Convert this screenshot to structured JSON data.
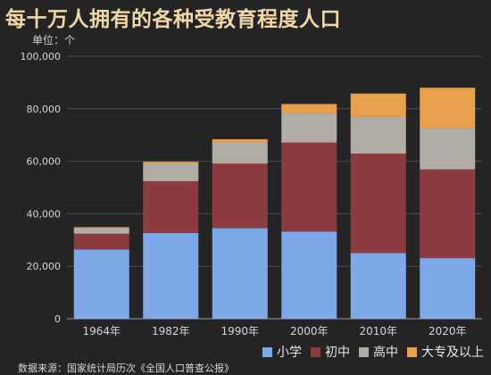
{
  "chart_data": {
    "type": "bar",
    "stacked": true,
    "title": "每十万人拥有的各种受教育程度人口",
    "unit_label": "单位：个",
    "source": "数据来源：国家统计局历次《全国人口普查公报》",
    "categories": [
      "1964年",
      "1982年",
      "1990年",
      "2000年",
      "2010年",
      "2020年"
    ],
    "series": [
      {
        "name": "小学",
        "color": "#7ea8e8",
        "values": [
          26400,
          32700,
          34500,
          33200,
          25000,
          23100
        ]
      },
      {
        "name": "初中",
        "color": "#8c3b3f",
        "values": [
          6000,
          19700,
          24600,
          33900,
          37900,
          33800
        ]
      },
      {
        "name": "高中",
        "color": "#b2aca6",
        "values": [
          2100,
          6800,
          7900,
          11100,
          14000,
          15600
        ]
      },
      {
        "name": "大专及以上",
        "color": "#e8a04c",
        "values": [
          400,
          600,
          1400,
          3600,
          8900,
          15500
        ]
      }
    ],
    "ylim": [
      0,
      100000
    ],
    "yticks": [
      0,
      20000,
      40000,
      60000,
      80000,
      100000
    ],
    "ytick_labels": [
      "0",
      "20,000",
      "40,000",
      "60,000",
      "80,000",
      "100,000"
    ],
    "grid": true,
    "legend_position": "bottom-right"
  }
}
